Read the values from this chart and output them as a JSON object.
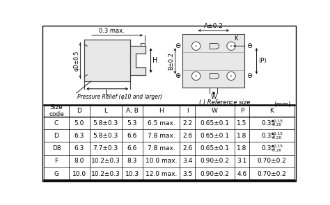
{
  "bg_color": "#ffffff",
  "table_headers": [
    "Size\ncode",
    "D",
    "L",
    "A, B",
    "H",
    "I",
    "W",
    "P",
    "K"
  ],
  "table_rows": [
    [
      "C",
      "5.0",
      "5.8±0.3",
      "5.3",
      "6.5 max.",
      "2.2",
      "0.65±0.1",
      "1.5",
      "0.35+0.15/0.20"
    ],
    [
      "D",
      "6.3",
      "5.8±0.3",
      "6.6",
      "7.8 max.",
      "2.6",
      "0.65±0.1",
      "1.8",
      "0.35+0.15/0.20"
    ],
    [
      "D8",
      "6.3",
      "7.7±0.3",
      "6.6",
      "7.8 max.",
      "2.6",
      "0.65±0.1",
      "1.8",
      "0.35+0.15/0.20"
    ],
    [
      "F",
      "8.0",
      "10.2±0.3",
      "8.3",
      "10.0 max.",
      "3.4",
      "0.90±0.2",
      "3.1",
      "0.70±0.2"
    ],
    [
      "G",
      "10.0",
      "10.2±0.3",
      "10.3",
      "12.0 max.",
      "3.5",
      "0.90±0.2",
      "4.6",
      "0.70±0.2"
    ]
  ],
  "mm_label": "(mm)",
  "ref_size_label": "( ) Reference size",
  "pressure_label": "Pressure Relief (φ10 and larger)"
}
